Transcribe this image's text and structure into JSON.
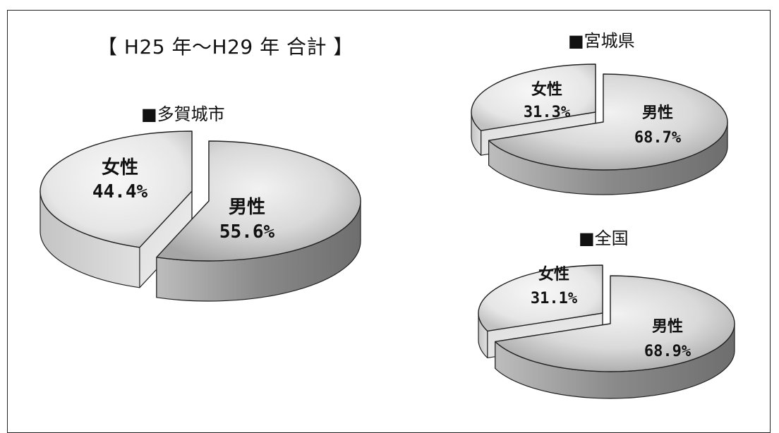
{
  "title": "【 H25 年〜H29 年 合計 】",
  "chart_data": [
    {
      "type": "pie",
      "title": "■多賀城市",
      "slices": [
        {
          "label": "男性",
          "value": 55.6,
          "display": "55.6%"
        },
        {
          "label": "女性",
          "value": 44.4,
          "display": "44.4%"
        }
      ]
    },
    {
      "type": "pie",
      "title": "■宮城県",
      "slices": [
        {
          "label": "男性",
          "value": 68.7,
          "display": "68.7%"
        },
        {
          "label": "女性",
          "value": 31.3,
          "display": "31.3%"
        }
      ]
    },
    {
      "type": "pie",
      "title": "■全国",
      "slices": [
        {
          "label": "男性",
          "value": 68.9,
          "display": "68.9%"
        },
        {
          "label": "女性",
          "value": 31.1,
          "display": "31.1%"
        }
      ]
    }
  ],
  "colors": {
    "top_light": "#f2f2f2",
    "top_mid": "#d9d9d9",
    "top_dark": "#a6a6a6",
    "side_light": "#e0e0e0",
    "side_dark": "#6e6e6e",
    "stroke": "#222222"
  }
}
